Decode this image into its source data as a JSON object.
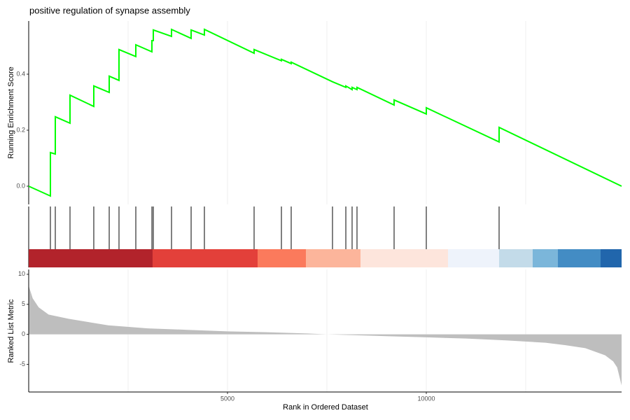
{
  "chart_data": [
    {
      "type": "line",
      "title": "positive regulation of synapse assembly",
      "ylabel": "Running Enrichment Score",
      "x": [
        0,
        546,
        546,
        669,
        669,
        1039,
        1039,
        1637,
        1637,
        2025,
        2025,
        2271,
        2271,
        2694,
        2694,
        3099,
        3099,
        3134,
        3134,
        3592,
        3592,
        4085,
        4085,
        4419,
        4419,
        5669,
        5669,
        6356,
        6356,
        6602,
        6602,
        7641,
        7976,
        7976,
        8134,
        8134,
        8257,
        8257,
        9190,
        9190,
        10000,
        10000,
        11831,
        11831,
        14912
      ],
      "values": [
        0,
        -0.035,
        0.12,
        0.115,
        0.248,
        0.225,
        0.325,
        0.285,
        0.358,
        0.335,
        0.393,
        0.378,
        0.488,
        0.463,
        0.505,
        0.48,
        0.52,
        0.52,
        0.558,
        0.535,
        0.56,
        0.528,
        0.558,
        0.54,
        0.56,
        0.475,
        0.488,
        0.448,
        0.453,
        0.438,
        0.443,
        0.373,
        0.353,
        0.358,
        0.345,
        0.353,
        0.345,
        0.353,
        0.29,
        0.308,
        0.258,
        0.28,
        0.158,
        0.21,
        0
      ],
      "color": "#00ff00",
      "xlim": [
        0,
        14912
      ],
      "ylim": [
        -0.065,
        0.59
      ],
      "yticks": [
        {
          "value": 0,
          "label": "0.0"
        },
        0.2,
        0.4
      ],
      "x_grid": [
        2500,
        5000,
        7500,
        10000,
        12500
      ]
    },
    {
      "type": "rug",
      "hits": [
        546,
        669,
        1039,
        1637,
        2025,
        2271,
        2694,
        3099,
        3134,
        3592,
        4085,
        4419,
        5669,
        6356,
        6602,
        7641,
        7976,
        8134,
        8257,
        9190,
        10000,
        11831
      ],
      "hit_color": "#000000",
      "band_edges": [
        0,
        3116,
        5757,
        6972,
        8345,
        10546,
        11831,
        12676,
        13310,
        14384,
        14912
      ],
      "band_colors": [
        "#b2232b",
        "#e3403a",
        "#fb7a5c",
        "#fcb59b",
        "#fde5dc",
        "#eef3fb",
        "#c3dbe9",
        "#7bb6da",
        "#438cc4",
        "#2166ac"
      ],
      "xlim": [
        0,
        14912
      ]
    },
    {
      "type": "area",
      "ylabel": "Ranked List Metric",
      "xlabel": "Rank in Ordered Dataset",
      "x": [
        0,
        100,
        250,
        500,
        1000,
        2000,
        3000,
        4000,
        5000,
        6000,
        7000,
        7500,
        8000,
        9000,
        10000,
        11000,
        12000,
        13000,
        13500,
        14000,
        14500,
        14700,
        14800,
        14912
      ],
      "values": [
        8.1,
        6,
        4.5,
        3.3,
        2.6,
        1.5,
        1.0,
        0.75,
        0.5,
        0.35,
        0.15,
        0,
        -0.1,
        -0.3,
        -0.5,
        -0.7,
        -1.0,
        -1.4,
        -1.8,
        -2.3,
        -3.5,
        -4.5,
        -5.5,
        -8.5
      ],
      "color": "#bebebe",
      "xlim": [
        0,
        14912
      ],
      "ylim": [
        -9.6,
        10.8
      ],
      "xticks": [
        5000,
        10000
      ],
      "yticks": [
        -5,
        0,
        5,
        10
      ],
      "x_grid": [
        2500,
        5000,
        7500,
        10000,
        12500
      ]
    }
  ]
}
